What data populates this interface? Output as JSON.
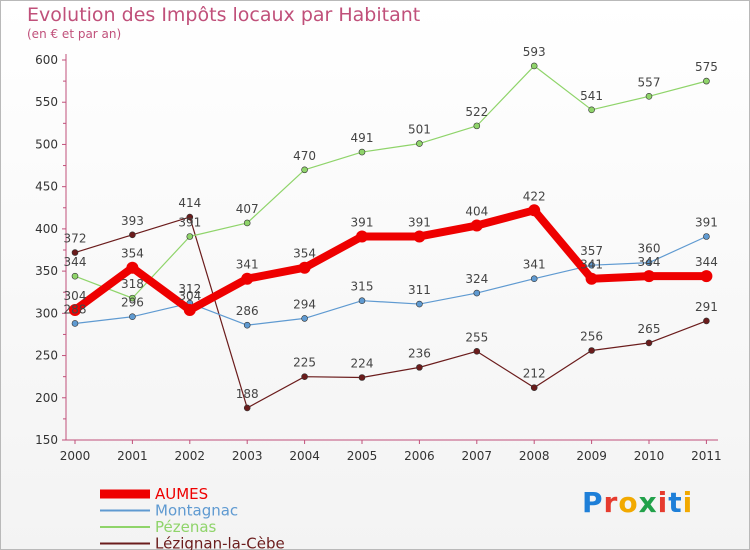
{
  "header": {
    "title": "Evolution des Impôts locaux par Habitant",
    "subtitle": "(en € et par an)"
  },
  "logo": {
    "text": "Proxiti",
    "colors": [
      "#1e7fd8",
      "#e63b2e",
      "#f2a900",
      "#22a14a",
      "#e63b2e",
      "#1e7fd8",
      "#f2a900"
    ]
  },
  "chart_data": {
    "type": "line",
    "title": "Evolution des Impôts locaux par Habitant",
    "subtitle": "(en € et par an)",
    "xlabel": "",
    "ylabel": "",
    "categories": [
      "2000",
      "2001",
      "2002",
      "2003",
      "2004",
      "2005",
      "2006",
      "2007",
      "2008",
      "2009",
      "2010",
      "2011"
    ],
    "ylim": [
      150,
      600
    ],
    "yticks": [
      150,
      200,
      250,
      300,
      350,
      400,
      450,
      500,
      550,
      600
    ],
    "grid": false,
    "legend_position": "bottom-left",
    "series": [
      {
        "name": "Lézignan-la-Cèbe",
        "color": "#6b1c1c",
        "bold": false,
        "values": [
          372,
          393,
          414,
          188,
          225,
          224,
          236,
          255,
          212,
          256,
          265,
          291
        ]
      },
      {
        "name": "Pézenas",
        "color": "#8fd46a",
        "bold": false,
        "values": [
          344,
          318,
          391,
          407,
          470,
          491,
          501,
          522,
          593,
          541,
          557,
          575
        ]
      },
      {
        "name": "Montagnac",
        "color": "#5f9ad1",
        "bold": false,
        "values": [
          288,
          296,
          312,
          286,
          294,
          315,
          311,
          324,
          341,
          357,
          360,
          391
        ]
      },
      {
        "name": "AUMES",
        "color": "#ee0000",
        "bold": true,
        "values": [
          304,
          354,
          304,
          341,
          354,
          391,
          391,
          404,
          422,
          341,
          344,
          344
        ]
      }
    ],
    "legend_order": [
      "AUMES",
      "Montagnac",
      "Pézenas",
      "Lézignan-la-Cèbe"
    ]
  }
}
